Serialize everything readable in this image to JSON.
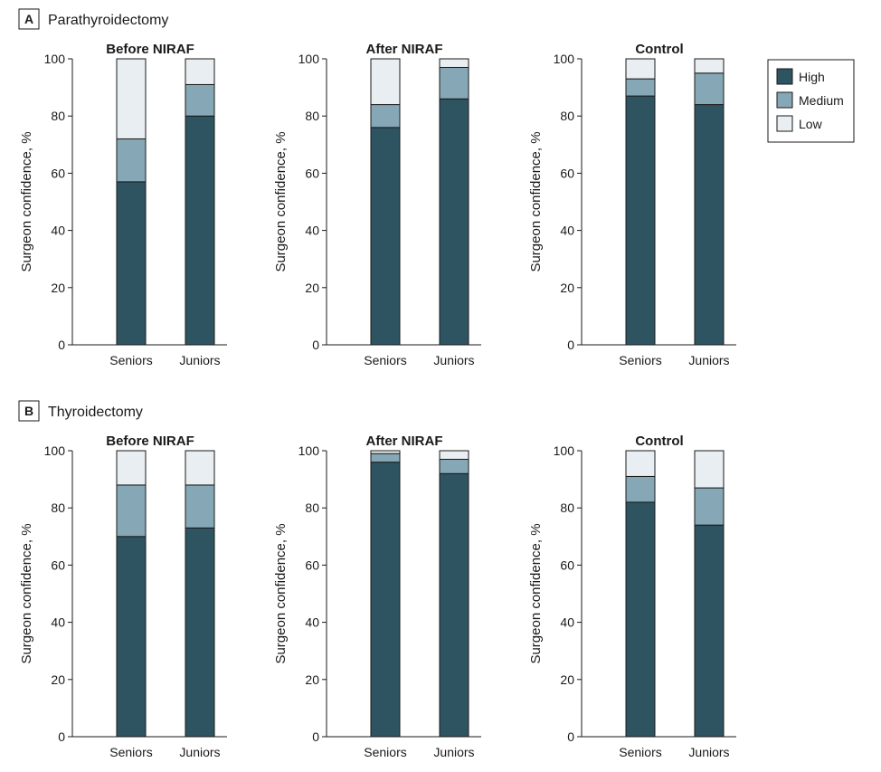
{
  "colors": {
    "high": "#2e5462",
    "medium": "#86a8b6",
    "low": "#e8eef2",
    "stroke": "#1a1a1a"
  },
  "legend": [
    {
      "key": "high",
      "label": "High"
    },
    {
      "key": "medium",
      "label": "Medium"
    },
    {
      "key": "low",
      "label": "Low"
    }
  ],
  "sections": [
    {
      "letter": "A",
      "title": "Parathyroidectomy"
    },
    {
      "letter": "B",
      "title": "Thyroidectomy"
    }
  ],
  "chart_data": [
    {
      "type": "bar",
      "stacked": true,
      "section": "A",
      "title": "Before NIRAF",
      "categories": [
        "Seniors",
        "Juniors"
      ],
      "ylabel": "Surgeon confidence, %",
      "ylim": [
        0,
        100
      ],
      "yticks": [
        0,
        20,
        40,
        60,
        80,
        100
      ],
      "series": [
        {
          "name": "High",
          "values": [
            57,
            80
          ]
        },
        {
          "name": "Medium",
          "values": [
            15,
            11
          ]
        },
        {
          "name": "Low",
          "values": [
            28,
            9
          ]
        }
      ]
    },
    {
      "type": "bar",
      "stacked": true,
      "section": "A",
      "title": "After NIRAF",
      "categories": [
        "Seniors",
        "Juniors"
      ],
      "ylabel": "Surgeon confidence, %",
      "ylim": [
        0,
        100
      ],
      "yticks": [
        0,
        20,
        40,
        60,
        80,
        100
      ],
      "series": [
        {
          "name": "High",
          "values": [
            76,
            86
          ]
        },
        {
          "name": "Medium",
          "values": [
            8,
            11
          ]
        },
        {
          "name": "Low",
          "values": [
            16,
            3
          ]
        }
      ]
    },
    {
      "type": "bar",
      "stacked": true,
      "section": "A",
      "title": "Control",
      "categories": [
        "Seniors",
        "Juniors"
      ],
      "ylabel": "Surgeon confidence, %",
      "ylim": [
        0,
        100
      ],
      "yticks": [
        0,
        20,
        40,
        60,
        80,
        100
      ],
      "series": [
        {
          "name": "High",
          "values": [
            87,
            84
          ]
        },
        {
          "name": "Medium",
          "values": [
            6,
            11
          ]
        },
        {
          "name": "Low",
          "values": [
            7,
            5
          ]
        }
      ]
    },
    {
      "type": "bar",
      "stacked": true,
      "section": "B",
      "title": "Before NIRAF",
      "categories": [
        "Seniors",
        "Juniors"
      ],
      "ylabel": "Surgeon confidence, %",
      "ylim": [
        0,
        100
      ],
      "yticks": [
        0,
        20,
        40,
        60,
        80,
        100
      ],
      "series": [
        {
          "name": "High",
          "values": [
            70,
            73
          ]
        },
        {
          "name": "Medium",
          "values": [
            18,
            15
          ]
        },
        {
          "name": "Low",
          "values": [
            12,
            12
          ]
        }
      ]
    },
    {
      "type": "bar",
      "stacked": true,
      "section": "B",
      "title": "After NIRAF",
      "categories": [
        "Seniors",
        "Juniors"
      ],
      "ylabel": "Surgeon confidence, %",
      "ylim": [
        0,
        100
      ],
      "yticks": [
        0,
        20,
        40,
        60,
        80,
        100
      ],
      "series": [
        {
          "name": "High",
          "values": [
            96,
            92
          ]
        },
        {
          "name": "Medium",
          "values": [
            3,
            5
          ]
        },
        {
          "name": "Low",
          "values": [
            1,
            3
          ]
        }
      ]
    },
    {
      "type": "bar",
      "stacked": true,
      "section": "B",
      "title": "Control",
      "categories": [
        "Seniors",
        "Juniors"
      ],
      "ylabel": "Surgeon confidence, %",
      "ylim": [
        0,
        100
      ],
      "yticks": [
        0,
        20,
        40,
        60,
        80,
        100
      ],
      "series": [
        {
          "name": "High",
          "values": [
            82,
            74
          ]
        },
        {
          "name": "Medium",
          "values": [
            9,
            13
          ]
        },
        {
          "name": "Low",
          "values": [
            9,
            13
          ]
        }
      ]
    }
  ]
}
